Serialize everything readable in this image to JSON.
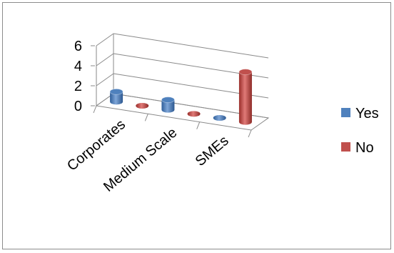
{
  "chart_data": {
    "type": "bar",
    "title": "",
    "xlabel": "",
    "ylabel": "",
    "categories": [
      "Corporates",
      "Medium Scale",
      "SMEs"
    ],
    "series": [
      {
        "name": "Yes",
        "values": [
          1,
          1,
          0
        ],
        "color": "#4f81bd"
      },
      {
        "name": "No",
        "values": [
          0,
          0,
          5
        ],
        "color": "#c0504d"
      }
    ],
    "ylim": [
      0,
      6
    ],
    "yticks": [
      "0",
      "2",
      "4",
      "6"
    ],
    "grid": true,
    "legend": "right",
    "style": "3d-cylinder"
  }
}
